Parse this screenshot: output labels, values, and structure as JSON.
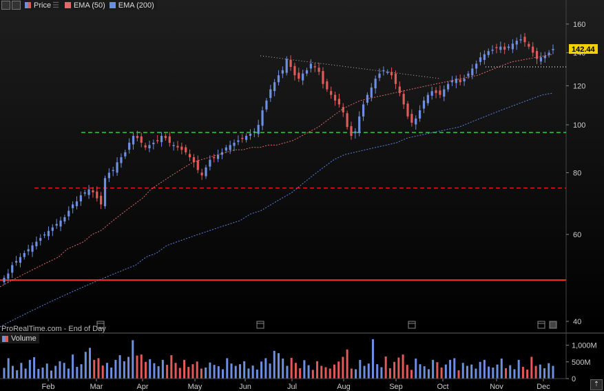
{
  "legend": {
    "price_label": "Price",
    "ema50_label": "EMA (50)",
    "ema200_label": "EMA (200)"
  },
  "volume_label": "Volume",
  "footer_note": "ProRealTime.com - End of Day",
  "last_price_badge": "142.44",
  "colors": {
    "up": "#6e8fe0",
    "down": "#e05a5a",
    "ema50": "#e06a6a",
    "ema200": "#5a85e0",
    "green_line": "#2ecc40",
    "red_dashed": "#e01818",
    "red_solid": "#ff2a2a",
    "badge": "#f5d000"
  },
  "chart_data": {
    "type": "line",
    "price_axis": {
      "scale": "log",
      "ticks": [
        "160",
        "140",
        "120",
        "100",
        "80",
        "60",
        "40"
      ],
      "range": [
        38,
        170
      ]
    },
    "volume_axis": {
      "ticks": [
        "1,000M",
        "500M",
        "0"
      ],
      "max": 1300
    },
    "x_tick_labels": [
      "Feb",
      "Mar",
      "Apr",
      "May",
      "Jun",
      "Jul",
      "Aug",
      "Sep",
      "Oct",
      "Nov",
      "Dec"
    ],
    "series_names": [
      "Price",
      "EMA (50)",
      "EMA (200)",
      "Volume"
    ],
    "horizontal_levels": [
      {
        "value": 96.5,
        "style": "dashed",
        "color": "green"
      },
      {
        "value": 74.5,
        "style": "dashed",
        "color": "red"
      },
      {
        "value": 48.5,
        "style": "solid",
        "color": "red"
      },
      {
        "value": 131,
        "style": "dotted",
        "color": "white"
      }
    ],
    "trendline": {
      "from": [
        0.43,
        138
      ],
      "to": [
        0.79,
        124
      ],
      "style": "dotted"
    },
    "price_closes": [
      49,
      50,
      52,
      53,
      54,
      55,
      56,
      57,
      58,
      59,
      60,
      61,
      62,
      63,
      64,
      65,
      67,
      69,
      70,
      72,
      73,
      74,
      73,
      71,
      69,
      78,
      80,
      81,
      84,
      86,
      88,
      92,
      95,
      94,
      92,
      90,
      91,
      92,
      93,
      95,
      94,
      92,
      91,
      90,
      89,
      88,
      86,
      84,
      81,
      79,
      82,
      85,
      86,
      87,
      88,
      90,
      91,
      92,
      93,
      94,
      95,
      96,
      97,
      100,
      107,
      112,
      118,
      122,
      126,
      129,
      136,
      131,
      126,
      124,
      127,
      129,
      133,
      131,
      128,
      121,
      118,
      115,
      112,
      110,
      106,
      99,
      95,
      97,
      104,
      110,
      115,
      119,
      124,
      127,
      129,
      128,
      126,
      121,
      116,
      110,
      104,
      101,
      103,
      107,
      112,
      115,
      117,
      116,
      115,
      118,
      121,
      123,
      124,
      122,
      124,
      127,
      130,
      133,
      137,
      139,
      141,
      142,
      143,
      144,
      142,
      144,
      146,
      148,
      149,
      147,
      144,
      140,
      136,
      137,
      138,
      140,
      142.44
    ],
    "ema50": [
      47,
      48,
      49,
      50,
      51,
      52,
      53,
      54,
      56,
      57,
      58,
      60,
      61,
      63,
      65,
      67,
      69,
      71,
      74,
      76,
      78,
      80,
      82,
      84,
      85,
      86,
      87,
      88,
      89,
      89,
      90,
      90,
      91,
      91,
      92,
      93,
      95,
      97,
      99,
      102,
      105,
      108,
      110,
      112,
      113,
      114,
      115,
      116,
      117,
      118,
      119,
      120,
      121,
      122,
      123,
      124,
      125,
      126,
      128,
      130,
      132,
      134,
      135,
      136,
      137,
      138,
      139
    ],
    "ema200": [
      39,
      40,
      41,
      42,
      43,
      44,
      45,
      46,
      47,
      48,
      49,
      50,
      51,
      52,
      54,
      55,
      57,
      58,
      59,
      60,
      61,
      62,
      63,
      64,
      66,
      67,
      69,
      71,
      73,
      76,
      79,
      82,
      85,
      87,
      88,
      89,
      90,
      91,
      92,
      94,
      95,
      96,
      97,
      98,
      99,
      101,
      103,
      105,
      107,
      109,
      111,
      113,
      115,
      116
    ],
    "volume": [
      320,
      610,
      380,
      250,
      470,
      300,
      560,
      640,
      290,
      330,
      450,
      240,
      380,
      520,
      470,
      300,
      720,
      350,
      430,
      800,
      920,
      560,
      610,
      390,
      470,
      330,
      560,
      700,
      520,
      650,
      1150,
      690,
      720,
      500,
      580,
      460,
      370,
      560,
      410,
      700,
      470,
      320,
      560,
      350,
      430,
      510,
      300,
      330,
      480,
      410,
      370,
      280,
      610,
      450,
      380,
      430,
      520,
      300,
      390,
      270,
      510,
      610,
      450,
      830,
      760,
      600,
      380,
      620,
      470,
      310,
      550,
      400,
      260,
      520,
      380,
      340,
      300,
      420,
      510,
      650,
      870,
      300,
      280,
      560,
      380,
      450,
      1180,
      430,
      340,
      660,
      310,
      500,
      630,
      720,
      410,
      260,
      600,
      430,
      370,
      280,
      560,
      490,
      330,
      420,
      560,
      610,
      250,
      470,
      380,
      420,
      300,
      500,
      560,
      360,
      330,
      420,
      600,
      310,
      400,
      280,
      560,
      350,
      270,
      650,
      380,
      420,
      310,
      460,
      380
    ]
  }
}
